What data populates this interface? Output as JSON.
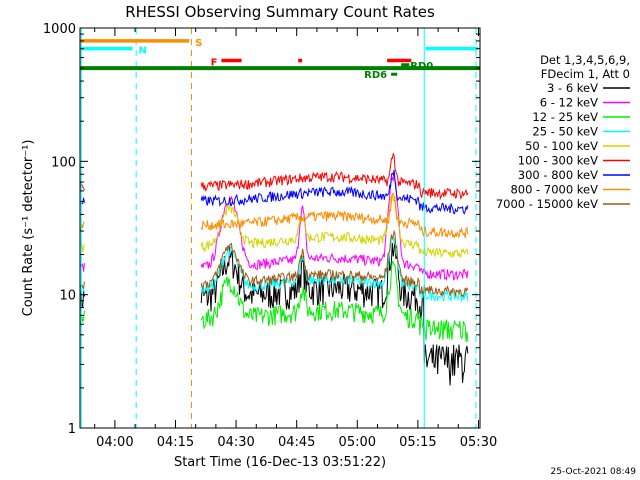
{
  "chart_data": {
    "type": "line",
    "title": "RHESSI Observing Summary Count Rates",
    "xlabel": "Start Time (16-Dec-13 03:51:22)",
    "ylabel": "Count Rate (s⁻¹ detector⁻¹)",
    "yscale": "log",
    "xlim_minutes": [
      0,
      99
    ],
    "ylim": [
      1,
      1000
    ],
    "x_ticks": [
      {
        "label": "04:00",
        "minute": 8.63
      },
      {
        "label": "04:15",
        "minute": 23.63
      },
      {
        "label": "04:30",
        "minute": 38.63
      },
      {
        "label": "04:45",
        "minute": 53.63
      },
      {
        "label": "05:00",
        "minute": 68.63
      },
      {
        "label": "05:15",
        "minute": 83.63
      },
      {
        "label": "05:30",
        "minute": 98.63
      }
    ],
    "y_ticks": [
      {
        "label": "1",
        "value": 1
      },
      {
        "label": "10",
        "value": 10
      },
      {
        "label": "100",
        "value": 100
      },
      {
        "label": "1000",
        "value": 1000
      }
    ],
    "legend_header": [
      "Det 1,3,4,5,6,9,",
      "FDecim 1, Att 0"
    ],
    "legend_position": "right",
    "grid": false,
    "series": [
      {
        "name": "3 - 6 keV",
        "color": "#000000",
        "level": 9.5
      },
      {
        "name": "6 - 12 keV",
        "color": "#ff00ff",
        "level": 16
      },
      {
        "name": "12 - 25 keV",
        "color": "#00ee00",
        "level": 6.5
      },
      {
        "name": "25 - 50 keV",
        "color": "#00ffff",
        "level": 11
      },
      {
        "name": "50 - 100 keV",
        "color": "#d4d400",
        "level": 23
      },
      {
        "name": "100 - 300 keV",
        "color": "#ff0000",
        "level": 65
      },
      {
        "name": "300 - 800 keV",
        "color": "#0000ff",
        "level": 50
      },
      {
        "name": "800 - 7000 keV",
        "color": "#ff8c00",
        "level": 33
      },
      {
        "name": "7000 - 15000 keV",
        "color": "#a05a14",
        "level": 12
      }
    ],
    "annotations": [
      {
        "label": "S",
        "color": "#ff8c00",
        "kind": "saa",
        "y": 800,
        "start": 0,
        "end": 27
      },
      {
        "label": "N",
        "color": "#00ffff",
        "kind": "night",
        "y": 700,
        "start": 0,
        "end": 13
      },
      {
        "label": "",
        "color": "#00ffff",
        "kind": "night",
        "y": 700,
        "start": 85.5,
        "end": 98.5
      },
      {
        "label": "F",
        "color": "#ff0000",
        "kind": "flare",
        "y": 570,
        "start": 35,
        "end": 40
      },
      {
        "label": "",
        "color": "#ff0000",
        "kind": "flare",
        "y": 570,
        "start": 54,
        "end": 55
      },
      {
        "label": "",
        "color": "#ff0000",
        "kind": "flare",
        "y": 570,
        "start": 76,
        "end": 82
      },
      {
        "label": "RD0",
        "color": "#008000",
        "kind": "decimation",
        "y": 530,
        "start": 79.5,
        "end": 81.5
      },
      {
        "label": "RD6",
        "color": "#008000",
        "kind": "decimation",
        "y": 450,
        "start": 77,
        "end": 78.5
      }
    ],
    "day_bar": {
      "color": "#008000",
      "y": 500
    },
    "vertical_markers": [
      {
        "minute": 0.3,
        "color": "#00ffff",
        "style": "solid"
      },
      {
        "minute": 13.9,
        "color": "#00ffff",
        "style": "dashed"
      },
      {
        "minute": 27.6,
        "color": "#ff8c00",
        "style": "dashed"
      },
      {
        "minute": 85.2,
        "color": "#00ffff",
        "style": "solid"
      },
      {
        "minute": 98.0,
        "color": "#00ffff",
        "style": "dashed"
      }
    ]
  },
  "footer": {
    "stamp": "25-Oct-2021 08:49"
  }
}
